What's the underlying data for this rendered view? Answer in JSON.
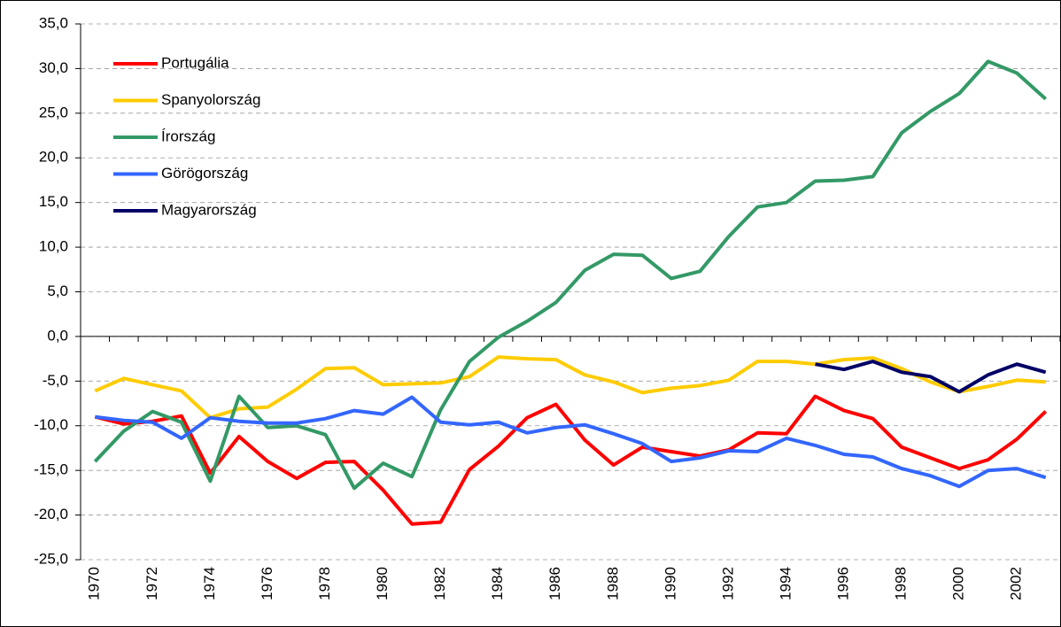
{
  "chart_data": {
    "type": "line",
    "categories": [
      1970,
      null,
      1972,
      null,
      1974,
      null,
      1976,
      null,
      1978,
      null,
      1980,
      null,
      1982,
      null,
      1984,
      null,
      1986,
      null,
      1988,
      null,
      1990,
      null,
      1992,
      null,
      1994,
      null,
      1996,
      null,
      1998,
      null,
      2000,
      null,
      2002,
      null
    ],
    "series": [
      {
        "name": "Portugália",
        "color": "#ff0000",
        "values": [
          -9,
          -9.8,
          -9.5,
          -8.9,
          -15.3,
          -11.2,
          -14,
          -15.9,
          -14.1,
          -14,
          -17.2,
          -21,
          -20.8,
          -14.9,
          -12.3,
          -9.1,
          -7.6,
          -11.6,
          -14.4,
          -12.4,
          -12.9,
          -13.4,
          -12.7,
          -10.8,
          -10.9,
          -6.7,
          -8.3,
          -9.2,
          -12.4,
          -13.6,
          -14.8,
          -13.8,
          -11.5,
          -8.4
        ]
      },
      {
        "name": "Spanyolország",
        "color": "#ffcc00",
        "values": [
          -6.1,
          -4.7,
          -5.4,
          -6.1,
          -9.1,
          -8.1,
          -7.9,
          -5.9,
          -3.6,
          -3.5,
          -5.4,
          -5.3,
          -5.2,
          -4.5,
          -2.3,
          -2.5,
          -2.6,
          -4.3,
          -5.1,
          -6.3,
          -5.8,
          -5.5,
          -4.9,
          -2.8,
          -2.8,
          -3.1,
          -2.6,
          -2.4,
          -3.6,
          -5.1,
          -6.2,
          -5.6,
          -4.9,
          -5.1
        ]
      },
      {
        "name": "Írország",
        "color": "#339966",
        "values": [
          -14,
          -10.6,
          -8.4,
          -9.6,
          -16.2,
          -6.7,
          -10.2,
          -10,
          -11,
          -17,
          -14.2,
          -15.7,
          -8.2,
          -2.8,
          -0.1,
          1.7,
          3.8,
          7.4,
          9.2,
          9.1,
          6.5,
          7.3,
          11.2,
          14.5,
          15,
          17.4,
          17.5,
          17.9,
          22.8,
          25.2,
          27.2,
          30.8,
          29.5,
          26.6
        ]
      },
      {
        "name": "Görögország",
        "color": "#3366ff",
        "values": [
          -9,
          -9.4,
          -9.6,
          -11.4,
          -9.1,
          -9.5,
          -9.7,
          -9.7,
          -9.2,
          -8.3,
          -8.7,
          -6.8,
          -9.6,
          -9.9,
          -9.6,
          -10.8,
          -10.2,
          -9.9,
          -10.9,
          -12,
          -14,
          -13.6,
          -12.8,
          -12.9,
          -11.4,
          -12.2,
          -13.2,
          -13.5,
          -14.8,
          -15.6,
          -16.8,
          -15,
          -14.8,
          -15.8
        ]
      },
      {
        "name": "Magyarország",
        "color": "#000066",
        "values": [
          null,
          null,
          null,
          null,
          null,
          null,
          null,
          null,
          null,
          null,
          null,
          null,
          null,
          null,
          null,
          null,
          null,
          null,
          null,
          null,
          null,
          null,
          null,
          null,
          null,
          -3.1,
          -3.7,
          -2.8,
          -4,
          -4.5,
          -6.2,
          -4.3,
          -3.1,
          -4
        ]
      }
    ],
    "ylim": [
      -25,
      35
    ],
    "yticks": [
      {
        "value": -25,
        "label": "-25,0"
      },
      {
        "value": -20,
        "label": "-20,0"
      },
      {
        "value": -15,
        "label": "-15,0"
      },
      {
        "value": -10,
        "label": "-10,0"
      },
      {
        "value": -5,
        "label": "-5,0"
      },
      {
        "value": 0,
        "label": "0,0"
      },
      {
        "value": 5,
        "label": "5,0"
      },
      {
        "value": 10,
        "label": "10,0"
      },
      {
        "value": 15,
        "label": "15,0"
      },
      {
        "value": 20,
        "label": "20,0"
      },
      {
        "value": 25,
        "label": "25,0"
      },
      {
        "value": 30,
        "label": "30,0"
      },
      {
        "value": 35,
        "label": "35,0"
      }
    ],
    "grid": true,
    "legend": "upper left"
  }
}
